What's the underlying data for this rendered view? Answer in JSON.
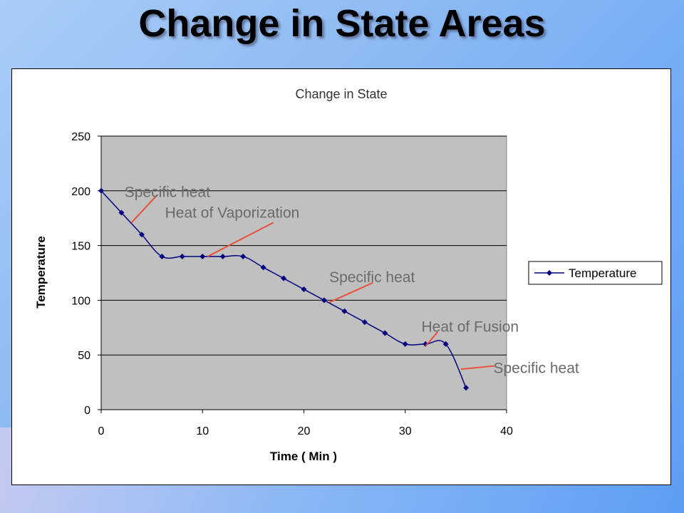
{
  "slide": {
    "title": "Change in State Areas"
  },
  "colors": {
    "plot_background": "#c0c0c0",
    "series_line": "#000080",
    "annotation_line": "#e8503a",
    "annotation_text": "#6a6a6a",
    "gridline": "#000000"
  },
  "chart_data": {
    "type": "line",
    "title": "Change in State",
    "xlabel": "Time ( Min )",
    "ylabel": "Temperature",
    "xlim": [
      0,
      40
    ],
    "ylim": [
      0,
      250
    ],
    "x_ticks": [
      "0",
      "10",
      "20",
      "30",
      "40"
    ],
    "y_ticks": [
      "0",
      "50",
      "100",
      "150",
      "200",
      "250"
    ],
    "grid": "horizontal",
    "legend_position": "right",
    "series": [
      {
        "name": "Temperature",
        "marker": "diamond",
        "x": [
          0,
          2,
          4,
          6,
          8,
          10,
          12,
          14,
          16,
          18,
          20,
          22,
          24,
          26,
          28,
          30,
          32,
          34,
          36
        ],
        "y": [
          200,
          180,
          160,
          140,
          140,
          140,
          140,
          140,
          130,
          120,
          110,
          100,
          90,
          80,
          70,
          60,
          60,
          60,
          20
        ]
      }
    ],
    "annotations": [
      {
        "text": "Specific heat",
        "x": 2.3,
        "y": 199,
        "arrow_from": [
          5.5,
          196
        ],
        "arrow_to": [
          3,
          171
        ]
      },
      {
        "text": "Heat of Vaporization",
        "x": 6.3,
        "y": 180,
        "arrow_from": [
          17,
          171
        ],
        "arrow_to": [
          10.5,
          140
        ]
      },
      {
        "text": "Specific heat",
        "x": 22.5,
        "y": 121,
        "arrow_from": [
          26.8,
          116
        ],
        "arrow_to": [
          22.5,
          98
        ]
      },
      {
        "text": "Heat of Fusion",
        "x": 31.6,
        "y": 76,
        "arrow_from": [
          33.2,
          71
        ],
        "arrow_to": [
          32,
          58
        ]
      },
      {
        "text": "Specific heat",
        "x": 38.7,
        "y": 38,
        "arrow_from": [
          38.8,
          40
        ],
        "arrow_to": [
          35.5,
          37
        ]
      }
    ]
  }
}
